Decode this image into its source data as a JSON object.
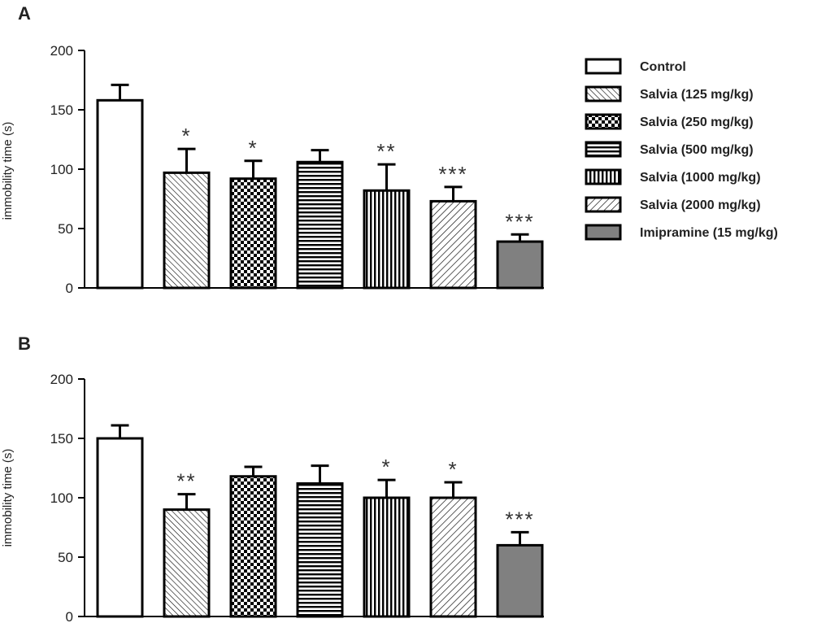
{
  "chart_data": [
    {
      "panel_label": "A",
      "type": "bar",
      "ylabel": "immobility time (s)",
      "ylim": [
        0,
        200
      ],
      "yticks": [
        "0",
        "50",
        "100",
        "150",
        "200"
      ],
      "series": [
        {
          "name": "Control",
          "value": 158,
          "error": 13,
          "significance": ""
        },
        {
          "name": "Salvia (125 mg/kg)",
          "value": 97,
          "error": 20,
          "significance": "*"
        },
        {
          "name": "Salvia (250 mg/kg)",
          "value": 92,
          "error": 15,
          "significance": "*"
        },
        {
          "name": "Salvia (500 mg/kg)",
          "value": 106,
          "error": 10,
          "significance": ""
        },
        {
          "name": "Salvia (1000 mg/kg)",
          "value": 82,
          "error": 22,
          "significance": "**"
        },
        {
          "name": "Salvia (2000 mg/kg)",
          "value": 73,
          "error": 12,
          "significance": "***"
        },
        {
          "name": "Imipramine (15 mg/kg)",
          "value": 39,
          "error": 6,
          "significance": "***"
        }
      ]
    },
    {
      "panel_label": "B",
      "type": "bar",
      "ylabel": "immobility time (s)",
      "ylim": [
        0,
        200
      ],
      "yticks": [
        "0",
        "50",
        "100",
        "150",
        "200"
      ],
      "series": [
        {
          "name": "Control",
          "value": 150,
          "error": 11,
          "significance": ""
        },
        {
          "name": "Salvia (125 mg/kg)",
          "value": 90,
          "error": 13,
          "significance": "**"
        },
        {
          "name": "Salvia (250 mg/kg)",
          "value": 118,
          "error": 8,
          "significance": ""
        },
        {
          "name": "Salvia (500 mg/kg)",
          "value": 112,
          "error": 15,
          "significance": ""
        },
        {
          "name": "Salvia (1000 mg/kg)",
          "value": 100,
          "error": 15,
          "significance": "*"
        },
        {
          "name": "Salvia (2000 mg/kg)",
          "value": 100,
          "error": 13,
          "significance": "*"
        },
        {
          "name": "Imipramine (15 mg/kg)",
          "value": 60,
          "error": 11,
          "significance": "***"
        }
      ]
    }
  ],
  "legend": {
    "placement": "right",
    "items": [
      {
        "label": "Control",
        "pattern": "white"
      },
      {
        "label": "Salvia (125 mg/kg)",
        "pattern": "diagonal-back-fine"
      },
      {
        "label": "Salvia (250 mg/kg)",
        "pattern": "checkerboard"
      },
      {
        "label": "Salvia (500 mg/kg)",
        "pattern": "horizontal-stripes"
      },
      {
        "label": "Salvia (1000 mg/kg)",
        "pattern": "vertical-stripes"
      },
      {
        "label": "Salvia (2000 mg/kg)",
        "pattern": "diagonal-forward"
      },
      {
        "label": "Imipramine (15 mg/kg)",
        "pattern": "gray"
      }
    ]
  },
  "colors": {
    "ink": "#000000",
    "axis_text": "#222222",
    "gray_fill": "#808080"
  }
}
